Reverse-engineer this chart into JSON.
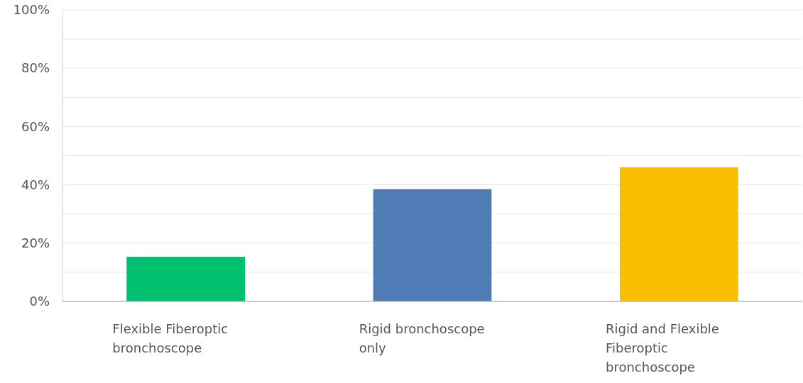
{
  "chart_data": {
    "type": "bar",
    "categories": [
      "Flexible Fiberoptic bronchoscope",
      "Rigid bronchoscope only",
      "Rigid and Flexible Fiberoptic bronchoscope"
    ],
    "values": [
      15.3,
      38.5,
      46
    ],
    "colors": [
      "#00bf6f",
      "#507cb6",
      "#f9be00"
    ],
    "ylim": [
      0,
      100
    ],
    "yticks": [
      {
        "value": 0,
        "label": "0%"
      },
      {
        "value": 10,
        "label": null
      },
      {
        "value": 20,
        "label": "20%"
      },
      {
        "value": 30,
        "label": null
      },
      {
        "value": 40,
        "label": "40%"
      },
      {
        "value": 50,
        "label": null
      },
      {
        "value": 60,
        "label": "60%"
      },
      {
        "value": 70,
        "label": null
      },
      {
        "value": 80,
        "label": "80%"
      },
      {
        "value": 90,
        "label": null
      },
      {
        "value": 100,
        "label": "100%"
      }
    ],
    "grid": "y"
  }
}
